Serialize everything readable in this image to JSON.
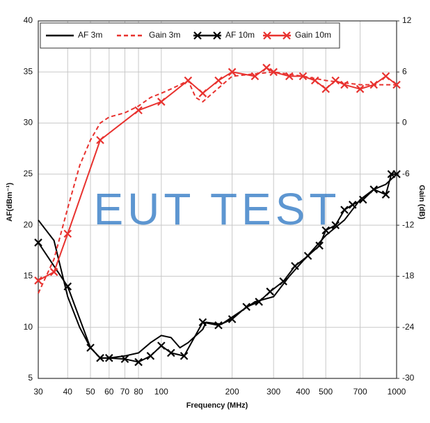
{
  "chart_data": {
    "type": "line",
    "xlabel": "Frequency (MHz)",
    "ylabel": "AF(dBm⁻¹)",
    "y2label": "Gain (dB)",
    "watermark": "EUT TEST",
    "xscale": "log",
    "xlim": [
      30,
      1000
    ],
    "xticks": [
      30,
      40,
      50,
      60,
      70,
      80,
      100,
      200,
      300,
      400,
      500,
      700,
      1000
    ],
    "ylim": [
      5,
      40
    ],
    "yticks": [
      5,
      10,
      15,
      20,
      25,
      30,
      35,
      40
    ],
    "y2lim": [
      -30,
      12
    ],
    "y2ticks": [
      -30,
      -24,
      -18,
      -12,
      -6,
      0,
      6,
      12
    ],
    "grid": true,
    "legend": "top-left",
    "series": [
      {
        "name": "AF 3m",
        "color": "#000000",
        "style": "solid",
        "marker": "none",
        "x": [
          30,
          35,
          40,
          45,
          50,
          55,
          60,
          70,
          80,
          90,
          100,
          110,
          120,
          130,
          150,
          155,
          180,
          200,
          250,
          300,
          350,
          400,
          500,
          600,
          700,
          800,
          900,
          1000
        ],
        "values": [
          20.5,
          18.5,
          13,
          10,
          8,
          7,
          7,
          7.2,
          7.5,
          8.5,
          9.2,
          9,
          8,
          8.5,
          9.8,
          10.5,
          10.3,
          11,
          12.5,
          13,
          15,
          16.5,
          19,
          20.5,
          22.5,
          23.5,
          24,
          25
        ]
      },
      {
        "name": "Gain 3m",
        "color": "#e8322f",
        "style": "dashed",
        "marker": "none",
        "axis": "y2",
        "x": [
          30,
          35,
          40,
          45,
          50,
          55,
          60,
          70,
          80,
          90,
          100,
          110,
          120,
          130,
          140,
          150,
          200,
          300,
          400,
          500,
          700,
          1000
        ],
        "values": [
          -20,
          -16,
          -10,
          -5,
          -2,
          0,
          0.7,
          1.2,
          2,
          3,
          3.5,
          4,
          4.5,
          5,
          3,
          2.5,
          5.5,
          6,
          5.5,
          5,
          4.5,
          4.5
        ]
      },
      {
        "name": "AF 10m",
        "color": "#000000",
        "style": "solid",
        "marker": "x",
        "x": [
          30,
          40,
          50,
          55,
          60,
          70,
          80,
          90,
          100,
          110,
          125,
          150,
          175,
          200,
          230,
          260,
          290,
          330,
          370,
          420,
          470,
          500,
          550,
          600,
          650,
          720,
          800,
          900,
          950,
          1000
        ],
        "values": [
          18.3,
          14,
          8,
          7,
          7,
          6.9,
          6.6,
          7.2,
          8.2,
          7.5,
          7.2,
          10.5,
          10.2,
          10.8,
          12,
          12.5,
          13.5,
          14.5,
          16,
          17,
          18,
          19.5,
          20,
          21.5,
          22,
          22.5,
          23.5,
          23,
          25,
          25
        ]
      },
      {
        "name": "Gain 10m",
        "color": "#e8322f",
        "style": "solid",
        "marker": "x",
        "axis": "y2",
        "x": [
          30,
          35,
          40,
          55,
          80,
          100,
          130,
          150,
          175,
          200,
          250,
          280,
          300,
          350,
          400,
          450,
          500,
          550,
          600,
          700,
          800,
          900,
          1000
        ],
        "values": [
          -18.5,
          -17.5,
          -13,
          -2,
          1.5,
          2.5,
          5,
          3.5,
          5,
          6,
          5.5,
          6.5,
          6,
          5.5,
          5.5,
          5,
          4,
          5,
          4.5,
          4,
          4.5,
          5.5,
          4.5
        ]
      }
    ]
  }
}
